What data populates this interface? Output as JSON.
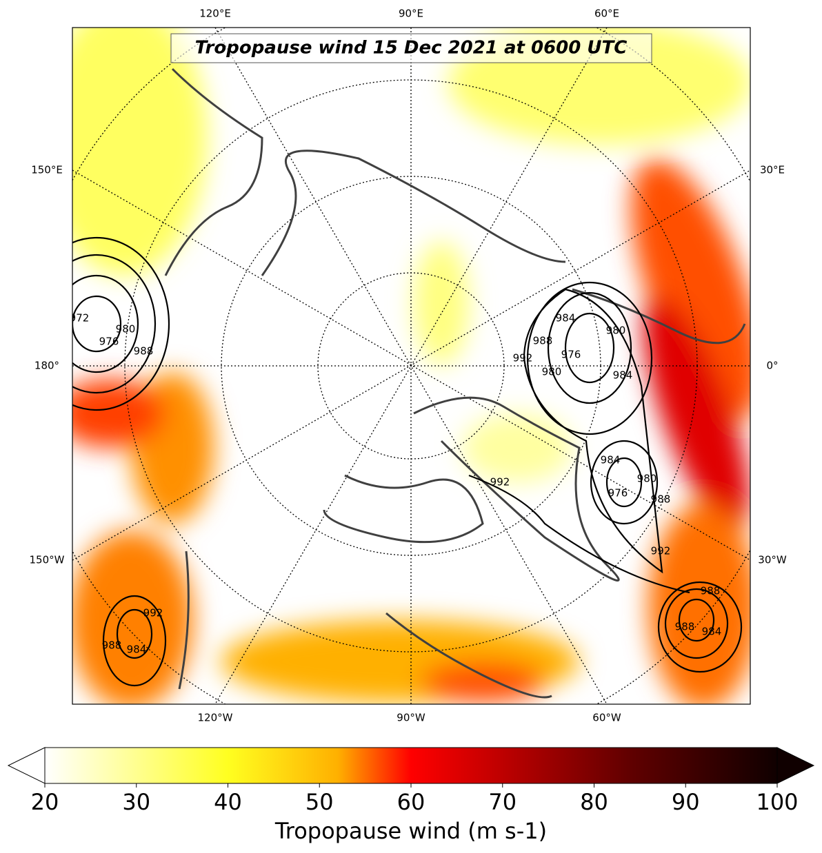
{
  "map": {
    "title": "Tropopause wind 15 Dec 2021 at 0600 UTC",
    "lon_labels_top": [
      "120°E",
      "90°E",
      "60°E"
    ],
    "lon_labels_left": [
      "150°E",
      "180°",
      "150°W"
    ],
    "lon_labels_right": [
      "30°E",
      "0°",
      "30°W"
    ],
    "lon_labels_bottom": [
      "120°W",
      "90°W",
      "60°W"
    ],
    "contour_labels": [
      972,
      976,
      980,
      988,
      984,
      988,
      980,
      992,
      976,
      980,
      984,
      984,
      980,
      976,
      988,
      992,
      992,
      988,
      988,
      984,
      992,
      988,
      984
    ]
  },
  "colorbar": {
    "label": "Tropopause wind (m s-1)",
    "lim": [
      20,
      100
    ],
    "ticks": [
      20,
      30,
      40,
      50,
      60,
      70,
      80,
      90,
      100
    ]
  }
}
